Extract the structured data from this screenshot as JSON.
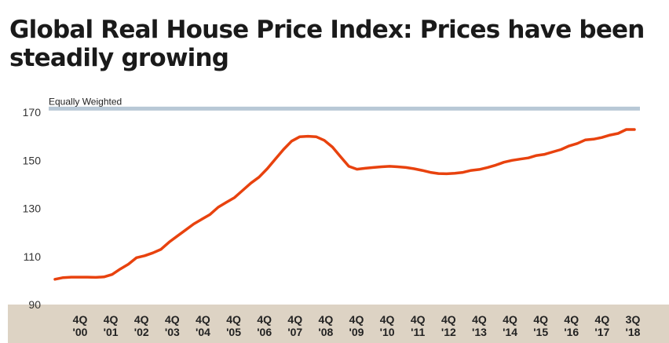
{
  "title": "Global Real House Price Index: Prices have been\nsteadily growing",
  "chart_data": {
    "type": "line",
    "title": "Global Real House Price Index: Prices have been steadily growing",
    "xlabel": "",
    "ylabel": "",
    "ylim": [
      90,
      175
    ],
    "yticks": [
      90,
      110,
      130,
      150,
      170
    ],
    "grid": false,
    "legend": "top-left",
    "tick_labels": [
      {
        "q": "4Q",
        "y": "'00"
      },
      {
        "q": "4Q",
        "y": "'01"
      },
      {
        "q": "4Q",
        "y": "'02"
      },
      {
        "q": "4Q",
        "y": "'03"
      },
      {
        "q": "4Q",
        "y": "'04"
      },
      {
        "q": "4Q",
        "y": "'05"
      },
      {
        "q": "4Q",
        "y": "'06"
      },
      {
        "q": "4Q",
        "y": "'07"
      },
      {
        "q": "4Q",
        "y": "'08"
      },
      {
        "q": "4Q",
        "y": "'09"
      },
      {
        "q": "4Q",
        "y": "'10"
      },
      {
        "q": "4Q",
        "y": "'11"
      },
      {
        "q": "4Q",
        "y": "'12"
      },
      {
        "q": "4Q",
        "y": "'13"
      },
      {
        "q": "4Q",
        "y": "'14"
      },
      {
        "q": "4Q",
        "y": "'15"
      },
      {
        "q": "4Q",
        "y": "'16"
      },
      {
        "q": "4Q",
        "y": "'17"
      },
      {
        "q": "3Q",
        "y": "'18"
      }
    ],
    "reference_line": {
      "label": "Equally Weighted",
      "value": 171.5,
      "color": "#b8c8d6"
    },
    "series": [
      {
        "name": "",
        "color": "#e8420e",
        "x": [
          2000.75,
          2001.0,
          2001.25,
          2001.5,
          2001.75,
          2002.0,
          2002.25,
          2002.5,
          2002.75,
          2003.0,
          2003.25,
          2003.5,
          2003.75,
          2004.0,
          2004.25,
          2004.5,
          2004.75,
          2005.0,
          2005.25,
          2005.5,
          2005.75,
          2006.0,
          2006.25,
          2006.5,
          2006.75,
          2007.0,
          2007.25,
          2007.5,
          2007.75,
          2008.0,
          2008.25,
          2008.5,
          2008.75,
          2009.0,
          2009.25,
          2009.5,
          2009.75,
          2010.0,
          2010.25,
          2010.5,
          2010.75,
          2011.0,
          2011.25,
          2011.5,
          2011.75,
          2012.0,
          2012.25,
          2012.5,
          2012.75,
          2013.0,
          2013.25,
          2013.5,
          2013.75,
          2014.0,
          2014.25,
          2014.5,
          2014.75,
          2015.0,
          2015.25,
          2015.5,
          2015.75,
          2016.0,
          2016.25,
          2016.5,
          2016.75,
          2017.0,
          2017.25,
          2017.5,
          2017.75,
          2018.0,
          2018.25,
          2018.5
        ],
        "values": [
          100.5,
          101.2,
          101.4,
          101.4,
          101.4,
          101.3,
          101.5,
          102.5,
          104.8,
          106.8,
          109.5,
          110.3,
          111.5,
          113.0,
          116.0,
          118.5,
          121.0,
          123.5,
          125.5,
          127.5,
          130.5,
          132.5,
          134.5,
          137.5,
          140.5,
          143.0,
          146.5,
          150.5,
          154.5,
          158.0,
          159.8,
          160.0,
          159.8,
          158.3,
          155.5,
          151.5,
          147.5,
          146.3,
          146.7,
          147.0,
          147.3,
          147.5,
          147.3,
          147.0,
          146.5,
          145.8,
          145.0,
          144.5,
          144.4,
          144.6,
          145.0,
          145.8,
          146.2,
          147.0,
          148.0,
          149.2,
          150.0,
          150.5,
          151.0,
          152.0,
          152.5,
          153.5,
          154.5,
          156.0,
          157.0,
          158.5,
          158.8,
          159.5,
          160.5,
          161.2,
          162.8,
          162.8
        ]
      }
    ]
  }
}
